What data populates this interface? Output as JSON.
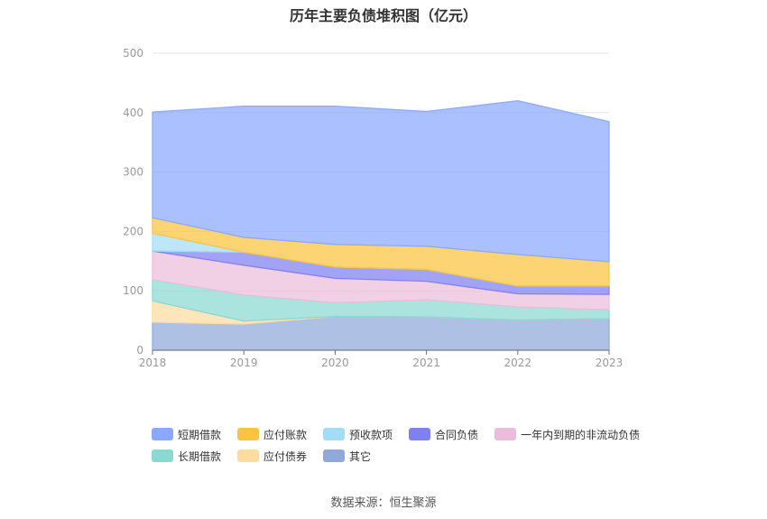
{
  "chart_data": {
    "type": "area",
    "stacked": true,
    "title": "历年主要负债堆积图（亿元）",
    "x": [
      "2018",
      "2019",
      "2020",
      "2021",
      "2022",
      "2023"
    ],
    "yticks": [
      0,
      100,
      200,
      300,
      400,
      500
    ],
    "ylim": [
      0,
      500
    ],
    "grid": true,
    "legend_position": "bottom",
    "series": [
      {
        "name": "其它",
        "color": "#8fa9d9",
        "values": [
          47,
          44,
          57,
          56,
          51,
          53
        ]
      },
      {
        "name": "应付债券",
        "color": "#fddca0",
        "values": [
          36,
          5,
          0,
          0,
          0,
          0
        ]
      },
      {
        "name": "长期借款",
        "color": "#8ad8d2",
        "values": [
          36,
          44,
          23,
          29,
          22,
          15
        ]
      },
      {
        "name": "一年内到期的非流动负债",
        "color": "#ebbddb",
        "values": [
          48,
          50,
          41,
          31,
          22,
          26
        ]
      },
      {
        "name": "合同负债",
        "color": "#7f80f3",
        "values": [
          0,
          22,
          19,
          20,
          13,
          14
        ]
      },
      {
        "name": "预收款项",
        "color": "#a3dcf7",
        "values": [
          30,
          0,
          0,
          0,
          0,
          0
        ]
      },
      {
        "name": "应付账款",
        "color": "#fbc43f",
        "values": [
          26,
          25,
          38,
          39,
          53,
          41
        ]
      },
      {
        "name": "短期借款",
        "color": "#8ba8ff",
        "values": [
          178,
          221,
          233,
          227,
          259,
          236
        ]
      }
    ],
    "legend_order": [
      "短期借款",
      "应付账款",
      "预收款项",
      "合同负债",
      "一年内到期的非流动负债",
      "长期借款",
      "应付债券",
      "其它"
    ]
  },
  "footer": {
    "source": "数据来源：恒生聚源"
  }
}
